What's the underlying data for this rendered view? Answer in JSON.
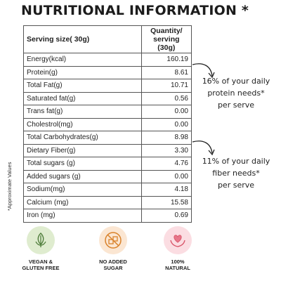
{
  "title": "NUTRITIONAL INFORMATION *",
  "table": {
    "header_left": "Serving size( 30g)",
    "header_right_line1": "Quantity/",
    "header_right_line2": "serving (30g)",
    "rows": [
      {
        "label": "Energy(kcal)",
        "value": "160.19"
      },
      {
        "label": "Protein(g)",
        "value": "8.61"
      },
      {
        "label": "Total Fat(g)",
        "value": "10.71"
      },
      {
        "label": "Saturated fat(g)",
        "value": "0.56"
      },
      {
        "label": "Trans fat(g)",
        "value": "0.00"
      },
      {
        "label": "Cholestrol(mg)",
        "value": "0.00"
      },
      {
        "label": "Total Carbohydrates(g)",
        "value": "8.98"
      },
      {
        "label": "Dietary Fiber(g)",
        "value": "3.30"
      },
      {
        "label": "Total sugars (g)",
        "value": "4.76"
      },
      {
        "label": "Added sugars (g)",
        "value": "0.00"
      },
      {
        "label": "Sodium(mg)",
        "value": "4.18"
      },
      {
        "label": "Calcium (mg)",
        "value": "15.58"
      },
      {
        "label": "Iron (mg)",
        "value": "0.69"
      }
    ]
  },
  "side_note": "*Approximate Values",
  "callouts": {
    "protein": {
      "line1": "16% of your daily",
      "line2": "protein needs*",
      "line3": "per serve"
    },
    "fiber": {
      "line1": "11% of your daily",
      "line2": "fiber needs*",
      "line3": "per serve"
    }
  },
  "badges": [
    {
      "icon": "vegan-leaf-icon",
      "color": "#4f7d3b",
      "line1": "VEGAN &",
      "line2": "GLUTEN FREE"
    },
    {
      "icon": "no-sugar-icon",
      "color": "#d9822b",
      "line1": "NO ADDED",
      "line2": "SUGAR"
    },
    {
      "icon": "heart-hands-icon",
      "color": "#d9576b",
      "line1": "100%",
      "line2": "NATURAL"
    }
  ]
}
